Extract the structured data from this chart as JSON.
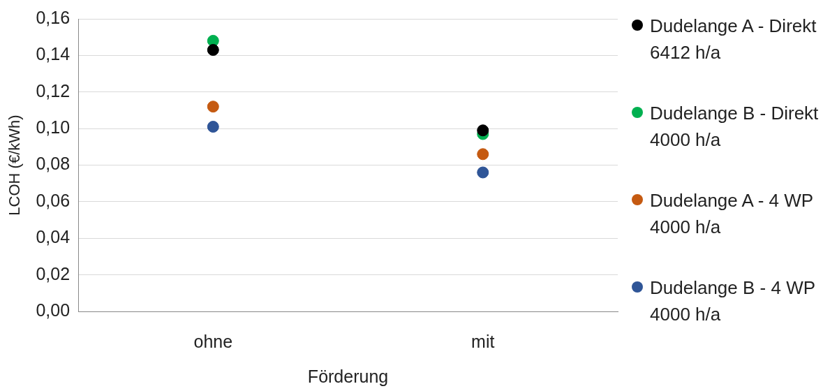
{
  "chart_data": {
    "type": "scatter",
    "ylabel": "LCOH (€/kWh)",
    "xlabel": "Förderung",
    "categories": [
      "ohne",
      "mit"
    ],
    "ylim": [
      0,
      0.16
    ],
    "yticks": [
      {
        "value": 0,
        "label": "0,00"
      },
      {
        "value": 0.02,
        "label": "0,02"
      },
      {
        "value": 0.04,
        "label": "0,04"
      },
      {
        "value": 0.06,
        "label": "0,06"
      },
      {
        "value": 0.08,
        "label": "0,08"
      },
      {
        "value": 0.1,
        "label": "0,10"
      },
      {
        "value": 0.12,
        "label": "0,12"
      },
      {
        "value": 0.14,
        "label": "0,14"
      },
      {
        "value": 0.16,
        "label": "0,16"
      }
    ],
    "grid": "y",
    "legend": "right",
    "marker": "circle",
    "series": [
      {
        "name": "Dudelange A - Direkt 6412 h/a",
        "color": "#000000",
        "values": [
          0.143,
          0.099
        ]
      },
      {
        "name": "Dudelange B - Direkt 4000 h/a",
        "color": "#00b050",
        "values": [
          0.148,
          0.097
        ]
      },
      {
        "name": "Dudelange A - 4 WP 4000 h/a",
        "color": "#c55a11",
        "values": [
          0.112,
          0.086
        ]
      },
      {
        "name": "Dudelange B - 4 WP 4000 h/a",
        "color": "#2f5597",
        "values": [
          0.101,
          0.076
        ]
      }
    ]
  }
}
